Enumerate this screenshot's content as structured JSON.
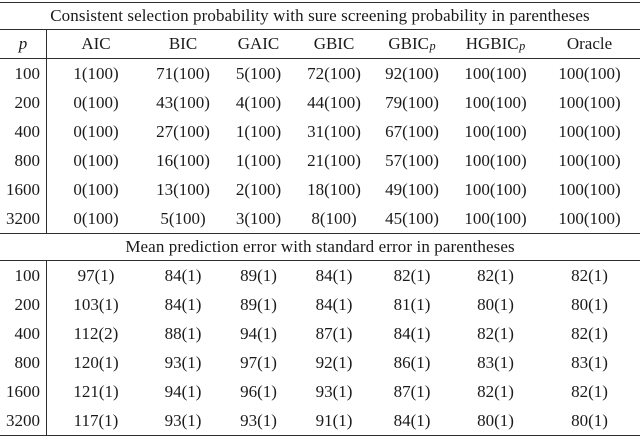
{
  "figure": {
    "background": "#ffffff",
    "text_color": "#1a1a1a",
    "rule_color": "#2e2e2e"
  },
  "sec1": {
    "title": "Consistent selection probability with sure screening probability in parentheses",
    "columns": [
      {
        "label": "p"
      },
      {
        "label": "AIC"
      },
      {
        "label": "BIC"
      },
      {
        "label": "GAIC"
      },
      {
        "label": "GBIC"
      },
      {
        "label": "GBIC",
        "sub": "p"
      },
      {
        "label": "HGBIC",
        "sub": "p"
      },
      {
        "label": "Oracle"
      }
    ],
    "rows": [
      [
        "100",
        "1(100)",
        "71(100)",
        "5(100)",
        "72(100)",
        "92(100)",
        "100(100)",
        "100(100)"
      ],
      [
        "200",
        "0(100)",
        "43(100)",
        "4(100)",
        "44(100)",
        "79(100)",
        "100(100)",
        "100(100)"
      ],
      [
        "400",
        "0(100)",
        "27(100)",
        "1(100)",
        "31(100)",
        "67(100)",
        "100(100)",
        "100(100)"
      ],
      [
        "800",
        "0(100)",
        "16(100)",
        "1(100)",
        "21(100)",
        "57(100)",
        "100(100)",
        "100(100)"
      ],
      [
        "1600",
        "0(100)",
        "13(100)",
        "2(100)",
        "18(100)",
        "49(100)",
        "100(100)",
        "100(100)"
      ],
      [
        "3200",
        "0(100)",
        "5(100)",
        "3(100)",
        "8(100)",
        "45(100)",
        "100(100)",
        "100(100)"
      ]
    ]
  },
  "sec2": {
    "title": "Mean prediction error with standard error in parentheses",
    "rows": [
      [
        "100",
        "97(1)",
        "84(1)",
        "89(1)",
        "84(1)",
        "82(1)",
        "82(1)",
        "82(1)"
      ],
      [
        "200",
        "103(1)",
        "84(1)",
        "89(1)",
        "84(1)",
        "81(1)",
        "80(1)",
        "80(1)"
      ],
      [
        "400",
        "112(2)",
        "88(1)",
        "94(1)",
        "87(1)",
        "84(1)",
        "82(1)",
        "82(1)"
      ],
      [
        "800",
        "120(1)",
        "93(1)",
        "97(1)",
        "92(1)",
        "86(1)",
        "83(1)",
        "83(1)"
      ],
      [
        "1600",
        "121(1)",
        "94(1)",
        "96(1)",
        "93(1)",
        "87(1)",
        "82(1)",
        "82(1)"
      ],
      [
        "3200",
        "117(1)",
        "93(1)",
        "93(1)",
        "91(1)",
        "84(1)",
        "80(1)",
        "80(1)"
      ]
    ]
  }
}
